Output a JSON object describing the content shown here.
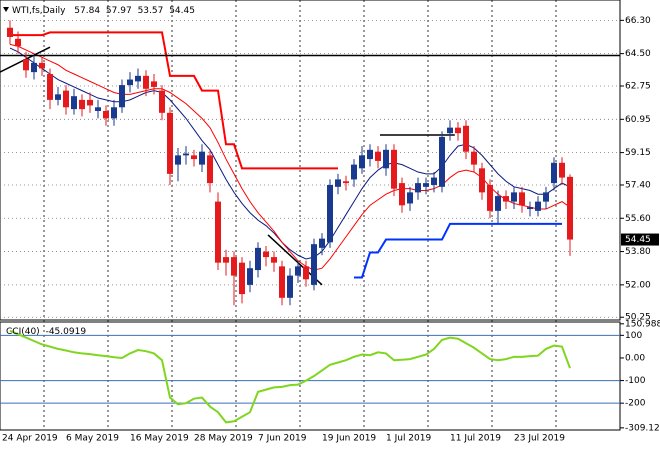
{
  "chart_data": [
    {
      "type": "candlestick",
      "title": "WTI,fs,Daily",
      "categories": [
        "24 Apr 2019",
        null,
        null,
        null,
        null,
        null,
        null,
        null,
        "6 May 2019",
        null,
        null,
        null,
        null,
        null,
        null,
        null,
        "16 May 2019",
        null,
        null,
        null,
        null,
        null,
        null,
        null,
        "28 May 2019",
        null,
        null,
        null,
        null,
        null,
        null,
        null,
        "7 Jun 2019",
        null,
        null,
        null,
        null,
        null,
        null,
        null,
        "19 Jun 2019",
        null,
        null,
        null,
        null,
        null,
        null,
        null,
        "1 Jul 2019",
        null,
        null,
        null,
        null,
        null,
        null,
        null,
        "11 Jul 2019",
        null,
        null,
        null,
        null,
        null,
        null,
        null,
        "23 Jul 2019",
        null,
        null,
        null,
        null,
        null,
        null
      ],
      "open": [
        65.9,
        65.3,
        64.2,
        63.5,
        64.0,
        63.4,
        62.0,
        62.5,
        61.5,
        62.0,
        62.0,
        61.4,
        61.4,
        61.0,
        61.6,
        62.8,
        63.0,
        63.3,
        63.0,
        62.5,
        61.3,
        58.5,
        59.0,
        59.0,
        58.5,
        59.0,
        56.5,
        53.5,
        53.5,
        53.2,
        52.0,
        52.8,
        53.8,
        53.5,
        53.0,
        51.3,
        52.5,
        53.0,
        52.0,
        54.0,
        54.3,
        57.3,
        57.6,
        57.7,
        58.3,
        58.8,
        59.2,
        58.3,
        59.3,
        57.5,
        56.4,
        57.0,
        57.3,
        57.4,
        57.3,
        60.2,
        60.5,
        60.6,
        59.2,
        58.3,
        57.4,
        56.0,
        56.8,
        56.5,
        57.0,
        56.1,
        56.0,
        56.5,
        57.5,
        58.6,
        57.84
      ],
      "high": [
        66.3,
        65.7,
        64.6,
        64.4,
        64.3,
        63.7,
        62.7,
        62.8,
        62.6,
        62.3,
        62.4,
        62.0,
        61.7,
        62.0,
        63.1,
        63.5,
        63.7,
        63.6,
        63.4,
        62.8,
        61.6,
        59.4,
        59.5,
        59.3,
        59.6,
        59.3,
        57.0,
        53.9,
        53.8,
        53.5,
        53.3,
        54.3,
        54.1,
        53.8,
        53.3,
        52.9,
        53.3,
        53.3,
        54.5,
        54.8,
        57.7,
        58.0,
        57.9,
        58.8,
        59.5,
        59.6,
        59.5,
        59.6,
        59.6,
        57.8,
        57.3,
        57.8,
        57.8,
        58.1,
        60.3,
        60.9,
        60.8,
        60.9,
        59.5,
        58.6,
        57.7,
        57.1,
        57.1,
        57.3,
        57.3,
        56.5,
        56.8,
        57.3,
        58.9,
        58.9,
        57.97
      ],
      "low": [
        65.0,
        64.5,
        63.2,
        63.1,
        63.3,
        61.5,
        61.7,
        61.2,
        61.2,
        61.1,
        61.3,
        61.0,
        60.6,
        60.6,
        61.3,
        62.4,
        62.6,
        62.2,
        62.3,
        60.9,
        57.4,
        57.6,
        58.5,
        58.4,
        58.1,
        57.0,
        52.8,
        52.5,
        50.9,
        51.0,
        51.6,
        52.4,
        53.0,
        52.7,
        50.9,
        50.9,
        52.1,
        51.9,
        51.7,
        53.6,
        54.0,
        56.9,
        57.1,
        57.3,
        58.0,
        58.4,
        58.3,
        57.9,
        56.8,
        55.9,
        56.0,
        56.6,
        56.9,
        57.0,
        57.0,
        59.8,
        59.8,
        58.8,
        58.1,
        56.6,
        55.6,
        55.3,
        56.1,
        56.1,
        55.9,
        55.7,
        55.7,
        56.1,
        57.1,
        57.4,
        53.57
      ],
      "close": [
        65.4,
        64.9,
        63.6,
        64.0,
        63.7,
        62.0,
        62.3,
        61.6,
        62.2,
        61.5,
        61.7,
        61.6,
        61.0,
        61.6,
        62.8,
        63.1,
        63.3,
        62.6,
        62.7,
        61.3,
        58.0,
        59.0,
        59.1,
        58.8,
        59.2,
        57.5,
        53.2,
        53.2,
        52.5,
        51.5,
        52.9,
        54.0,
        53.5,
        53.2,
        51.3,
        52.5,
        53.0,
        52.3,
        54.2,
        54.5,
        57.4,
        57.7,
        57.5,
        58.5,
        59.0,
        59.3,
        58.7,
        59.3,
        57.2,
        56.3,
        57.0,
        57.5,
        57.5,
        57.8,
        60.0,
        60.5,
        60.2,
        59.2,
        58.5,
        57.0,
        56.0,
        56.8,
        56.5,
        57.0,
        56.3,
        56.2,
        56.5,
        57.0,
        58.6,
        57.8,
        54.45
      ],
      "up_color": "#1a3a8f",
      "down_color": "#e41a1c",
      "series": [
        {
          "color": "#0b1a80",
          "width": 1,
          "values": [
            64.8,
            64.6,
            64.3,
            64.0,
            63.7,
            63.4,
            63.1,
            62.9,
            62.7,
            62.5,
            62.3,
            62.1,
            62.0,
            61.9,
            61.9,
            62.0,
            62.2,
            62.4,
            62.5,
            62.4,
            62.0,
            61.5,
            61.0,
            60.4,
            59.8,
            59.3,
            58.5,
            57.7,
            57.0,
            56.4,
            55.9,
            55.5,
            55.2,
            54.8,
            54.3,
            53.9,
            53.6,
            53.4,
            53.5,
            53.8,
            54.4,
            55.1,
            55.8,
            56.5,
            57.2,
            57.8,
            58.2,
            58.5,
            58.6,
            58.5,
            58.3,
            58.1,
            58.0,
            58.0,
            58.4,
            59.0,
            59.5,
            59.6,
            59.4,
            59.0,
            58.5,
            58.0,
            57.6,
            57.3,
            57.2,
            57.1,
            56.9,
            56.9,
            57.2,
            57.5,
            57.3
          ]
        },
        {
          "color": "#ff0000",
          "width": 1,
          "values": [
            65.0,
            64.9,
            64.7,
            64.5,
            64.3,
            64.1,
            63.9,
            63.6,
            63.4,
            63.2,
            63.0,
            62.8,
            62.6,
            62.4,
            62.3,
            62.3,
            62.4,
            62.5,
            62.6,
            62.6,
            62.4,
            62.1,
            61.8,
            61.4,
            61.0,
            60.5,
            59.7,
            58.8,
            58.0,
            57.2,
            56.5,
            55.9,
            55.4,
            54.9,
            54.3,
            53.8,
            53.3,
            53.0,
            52.8,
            52.9,
            53.4,
            54.0,
            54.6,
            55.2,
            55.8,
            56.3,
            56.6,
            56.9,
            57.1,
            57.2,
            57.2,
            57.1,
            57.1,
            57.2,
            57.4,
            57.8,
            58.1,
            58.2,
            58.1,
            57.8,
            57.3,
            56.9,
            56.6,
            56.4,
            56.3,
            56.2,
            56.1,
            56.1,
            56.3,
            56.5,
            56.2
          ]
        },
        {
          "color": "#ff0000",
          "width": 2,
          "values": [
            65.5,
            65.5,
            65.5,
            65.5,
            65.5,
            65.65,
            65.65,
            65.65,
            65.65,
            65.65,
            65.65,
            65.65,
            65.65,
            65.65,
            65.65,
            65.65,
            65.65,
            65.65,
            65.65,
            65.65,
            63.3,
            63.3,
            63.3,
            63.3,
            62.5,
            62.5,
            62.5,
            59.6,
            59.6,
            58.3,
            58.3,
            58.3,
            58.3,
            58.3,
            58.3,
            58.3,
            58.3,
            58.3,
            58.3,
            58.3,
            58.3,
            58.3,
            null,
            null,
            null,
            null,
            null,
            null,
            null,
            null,
            null,
            null,
            null,
            null,
            null,
            null,
            null,
            null,
            null,
            null,
            null,
            null,
            null,
            null,
            null,
            null,
            null,
            null,
            null,
            null,
            null
          ]
        },
        {
          "color": "#0033ff",
          "width": 2,
          "values": [
            null,
            null,
            null,
            null,
            null,
            null,
            null,
            null,
            null,
            null,
            null,
            null,
            null,
            null,
            null,
            null,
            null,
            null,
            null,
            null,
            null,
            null,
            null,
            null,
            null,
            null,
            null,
            null,
            null,
            null,
            null,
            null,
            null,
            null,
            null,
            null,
            null,
            null,
            null,
            null,
            null,
            null,
            null,
            52.4,
            52.4,
            53.75,
            53.75,
            54.45,
            54.45,
            54.45,
            54.45,
            54.45,
            54.45,
            54.45,
            54.45,
            55.3,
            55.3,
            55.3,
            55.3,
            55.3,
            55.3,
            55.3,
            55.3,
            55.3,
            55.3,
            55.3,
            55.3,
            55.3,
            55.3,
            55.3,
            null
          ]
        }
      ],
      "hline": 64.4,
      "trendlines": [
        {
          "x": [
            -1.25,
            5
          ],
          "y": [
            63.5,
            64.85
          ]
        },
        {
          "x": [
            32.25,
            39
          ],
          "y": [
            54.7,
            52.0
          ]
        },
        {
          "x": [
            46.25,
            55.6
          ],
          "y": [
            60.1,
            60.1
          ]
        }
      ],
      "ylim": [
        50.1,
        67.4
      ],
      "yticks": [
        {
          "value": 66.3,
          "label": "66.30"
        },
        {
          "value": 64.5,
          "label": "64.50"
        },
        {
          "value": 62.75,
          "label": "62.75"
        },
        {
          "value": 60.95,
          "label": "60.95"
        },
        {
          "value": 59.15,
          "label": "59.15"
        },
        {
          "value": 57.4,
          "label": "57.40"
        },
        {
          "value": 55.6,
          "label": "55.60"
        },
        {
          "value": 53.8,
          "label": "53.80"
        },
        {
          "value": 52.0,
          "label": "52.00"
        },
        {
          "value": 50.25,
          "label": "50.25"
        }
      ],
      "grid": true
    },
    {
      "type": "line",
      "title": "CCI(40)",
      "color": "#7fd61e",
      "values": [
        120,
        105,
        90,
        75,
        60,
        50,
        40,
        33,
        25,
        20,
        17,
        12,
        8,
        3,
        0,
        20,
        35,
        30,
        20,
        -10,
        -175,
        -205,
        -200,
        -180,
        -175,
        -215,
        -240,
        -285,
        -280,
        -260,
        -240,
        -150,
        -140,
        -130,
        -128,
        -120,
        -118,
        -100,
        -80,
        -55,
        -30,
        -20,
        -10,
        5,
        15,
        12,
        25,
        20,
        -10,
        -8,
        -5,
        5,
        15,
        40,
        80,
        90,
        85,
        65,
        45,
        20,
        -5,
        -10,
        -5,
        5,
        5,
        8,
        10,
        40,
        55,
        50,
        -45.0919
      ],
      "ylim": [
        -318.6,
        159
      ],
      "yticks": [
        150.9883,
        100,
        {
          "value": 0,
          "label": "0.00"
        },
        -100,
        -200,
        -309.121
      ],
      "levels": [
        100,
        -100,
        -200
      ],
      "level_color": "#3b6fb6"
    }
  ]
}
